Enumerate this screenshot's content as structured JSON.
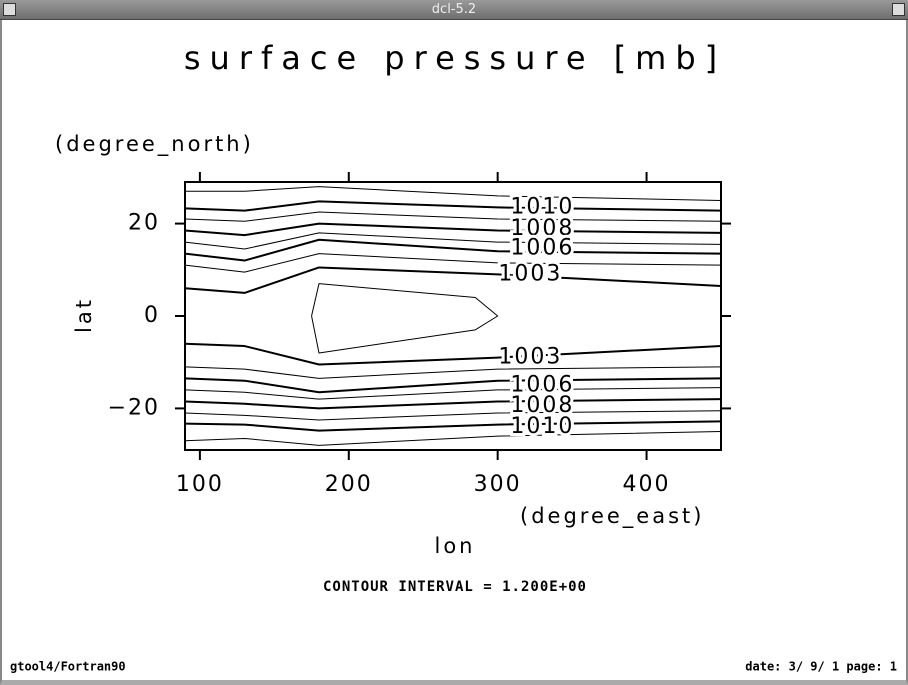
{
  "window_title": "dcl-5.2",
  "footer_left": "gtool4/Fortran90",
  "footer_right": "date: 3/ 9/ 1 page: 1",
  "chart_data": {
    "type": "contour",
    "title": "surface pressure [mb]",
    "x_label": "lon",
    "x_unit": "(degree_east)",
    "y_label": "lat",
    "y_unit": "(degree_north)",
    "note": "CONTOUR INTERVAL = 1.200E+00",
    "xlim": [
      90,
      450
    ],
    "ylim": [
      -29,
      29
    ],
    "xticks": [
      100,
      200,
      300,
      400
    ],
    "yticks": [
      {
        "value": -20,
        "label": "−20"
      },
      0,
      20
    ],
    "color": "#000000",
    "x": [
      90,
      130,
      180,
      300,
      450
    ],
    "series": [
      {
        "width": 1,
        "values": [
          27,
          27,
          28,
          26,
          25
        ]
      },
      {
        "width": 2,
        "values": [
          23.3,
          22.8,
          24.8,
          23.5,
          22.8
        ]
      },
      {
        "width": 1,
        "values": [
          21,
          20.5,
          22.5,
          21,
          20.5
        ]
      },
      {
        "width": 2,
        "values": [
          18.5,
          17.5,
          20,
          18.5,
          18
        ]
      },
      {
        "width": 1,
        "values": [
          16,
          14.5,
          18,
          16,
          15.5
        ]
      },
      {
        "width": 2,
        "values": [
          13.5,
          12,
          16.5,
          14,
          13.5
        ]
      },
      {
        "width": 1,
        "values": [
          11,
          9.5,
          13.5,
          11.5,
          11
        ]
      },
      {
        "width": 2,
        "values": [
          6,
          5,
          10.5,
          9,
          6.5
        ]
      },
      {
        "width": 2,
        "values": [
          -6,
          -6.5,
          -10.5,
          -9,
          -6.5
        ]
      },
      {
        "width": 1,
        "values": [
          -11,
          -11.5,
          -13.5,
          -11.5,
          -11
        ]
      },
      {
        "width": 2,
        "values": [
          -13.5,
          -14,
          -16.5,
          -14,
          -13.5
        ]
      },
      {
        "width": 1,
        "values": [
          -16,
          -16.5,
          -18,
          -16,
          -15.5
        ]
      },
      {
        "width": 2,
        "values": [
          -18.5,
          -19,
          -20,
          -18.5,
          -18
        ]
      },
      {
        "width": 1,
        "values": [
          -21,
          -21.5,
          -22.5,
          -21,
          -20.5
        ]
      },
      {
        "width": 2,
        "values": [
          -23.3,
          -23.5,
          -24.8,
          -23.5,
          -22.8
        ]
      },
      {
        "width": 1,
        "values": [
          -27,
          -26.5,
          -28,
          -26,
          -25
        ]
      },
      {
        "width": 1,
        "x": [
          175,
          180,
          285,
          300,
          285,
          180,
          175
        ],
        "values": [
          0,
          7,
          4,
          0,
          -3,
          -8,
          0
        ]
      }
    ],
    "contour_labels": [
      {
        "value": 1010,
        "x": 330,
        "y": 23.5
      },
      {
        "value": 1008,
        "x": 330,
        "y": 18.8
      },
      {
        "value": 1006,
        "x": 330,
        "y": 14.6
      },
      {
        "value": 1003,
        "x": 322,
        "y": 9
      },
      {
        "value": 1003,
        "x": 322,
        "y": -9
      },
      {
        "value": 1006,
        "x": 330,
        "y": -15
      },
      {
        "value": 1008,
        "x": 330,
        "y": -19.5
      },
      {
        "value": 1010,
        "x": 330,
        "y": -24
      }
    ]
  }
}
